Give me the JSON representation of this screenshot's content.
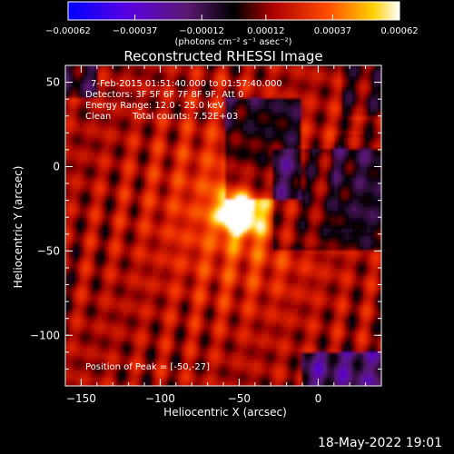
{
  "chart_data": {
    "type": "heatmap",
    "title": "Reconstructed RHESSI Image",
    "xlabel": "Heliocentric X (arcsec)",
    "ylabel": "Heliocentric Y (arcsec)",
    "xlim": [
      -160,
      40
    ],
    "ylim": [
      -130,
      60
    ],
    "x_ticks": [
      -150,
      -100,
      -50,
      0
    ],
    "y_ticks": [
      -100,
      -50,
      0,
      50
    ],
    "x_tick_labels": [
      "−150",
      "−100",
      "−50",
      "0"
    ],
    "y_tick_labels": [
      "−100",
      "−50",
      "0",
      "50"
    ],
    "colorbar": {
      "range": [
        -0.00062,
        0.00062
      ],
      "tick_values": [
        -0.00062,
        -0.00037,
        -0.00012,
        0.00012,
        0.00037,
        0.00062
      ],
      "tick_labels": [
        "−0.00062",
        "−0.00037",
        "−0.00012",
        "0.00012",
        "0.00037",
        "0.00062"
      ],
      "unit_label": "(photons cm⁻² s⁻¹ asec⁻²)",
      "colormap": [
        "#0000ff",
        "#6a00d8",
        "#5a1880",
        "#000000",
        "#b00000",
        "#ff3a00",
        "#ffd200",
        "#ffffff"
      ]
    },
    "annotations": [
      "7-Feb-2015 01:51:40.000 to 01:57:40.000",
      "Detectors: 3F 5F 6F 7F 8F 9F, Att 0",
      "Energy Range: 12.0 - 25.0 keV",
      "Clean",
      "Total counts: 7.52E+03"
    ],
    "peak_label": "Position of Peak = [-50,-27]",
    "peak": [
      -50,
      -27
    ]
  },
  "footer": {
    "date": "18-May-2022 19:01"
  }
}
